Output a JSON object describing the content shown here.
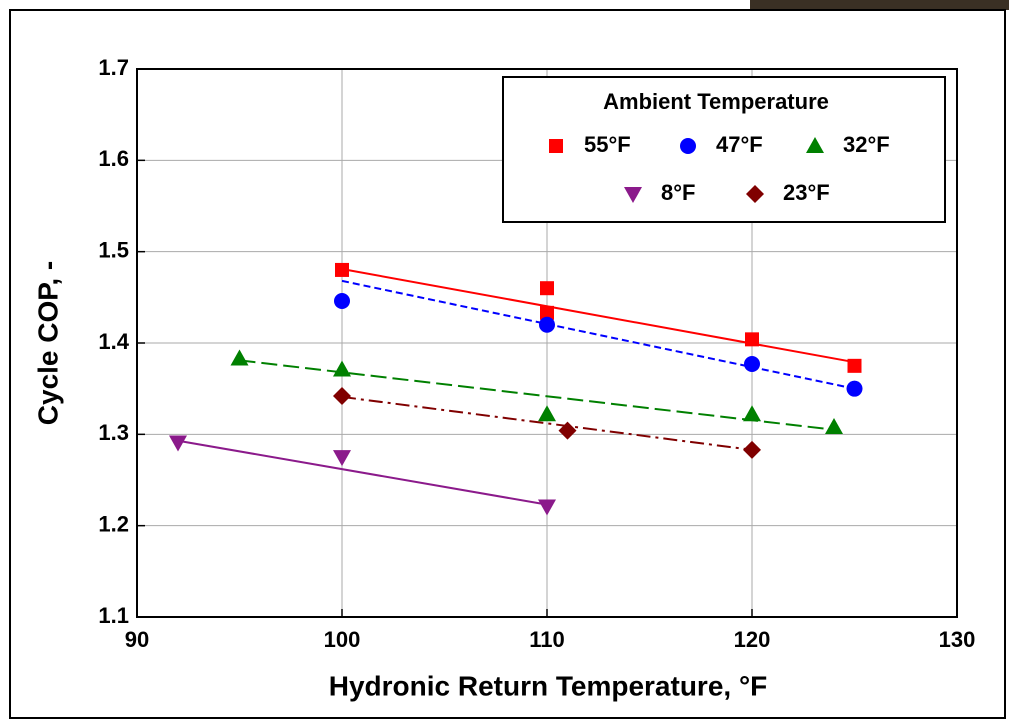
{
  "chart_data": {
    "type": "scatter",
    "xlabel": "Hydronic Return Temperature, °F",
    "ylabel": "Cycle COP, -",
    "xlim": [
      90,
      130
    ],
    "xticks": [
      90,
      100,
      110,
      120,
      130
    ],
    "ylim": [
      1.1,
      1.7
    ],
    "yticks": [
      1.1,
      1.2,
      1.3,
      1.4,
      1.5,
      1.6,
      1.7
    ],
    "grid": true,
    "legend": "upper right",
    "legend_title": "Ambient Temperature",
    "series": [
      {
        "name": "55°F",
        "color": "#ff0000",
        "marker": "square",
        "dash": "solid",
        "x": [
          100,
          110,
          110,
          120,
          125
        ],
        "values": [
          1.48,
          1.46,
          1.433,
          1.404,
          1.375
        ],
        "trend_x": [
          100,
          125
        ],
        "trend_y": [
          1.481,
          1.379
        ]
      },
      {
        "name": "47°F",
        "color": "#0000ff",
        "marker": "circle",
        "dash": "short",
        "x": [
          100,
          110,
          120,
          125
        ],
        "values": [
          1.446,
          1.42,
          1.377,
          1.35
        ],
        "trend_x": [
          100,
          125
        ],
        "trend_y": [
          1.468,
          1.35
        ]
      },
      {
        "name": "32°F",
        "color": "#008000",
        "marker": "triangle",
        "dash": "long",
        "x": [
          95,
          100,
          110,
          120,
          124
        ],
        "values": [
          1.383,
          1.371,
          1.322,
          1.322,
          1.308
        ],
        "trend_x": [
          95,
          124
        ],
        "trend_y": [
          1.381,
          1.305
        ]
      },
      {
        "name": "8°F",
        "color": "#8b1a8b",
        "marker": "triangle-down",
        "dash": "solid",
        "x": [
          92,
          100,
          110
        ],
        "values": [
          1.291,
          1.275,
          1.221
        ],
        "trend_x": [
          92,
          110
        ],
        "trend_y": [
          1.293,
          1.223
        ]
      },
      {
        "name": "23°F",
        "color": "#800000",
        "marker": "diamond",
        "dash": "dashdot",
        "x": [
          100,
          111,
          120
        ],
        "values": [
          1.342,
          1.304,
          1.283
        ],
        "trend_x": [
          100,
          120
        ],
        "trend_y": [
          1.341,
          1.283
        ]
      }
    ]
  }
}
